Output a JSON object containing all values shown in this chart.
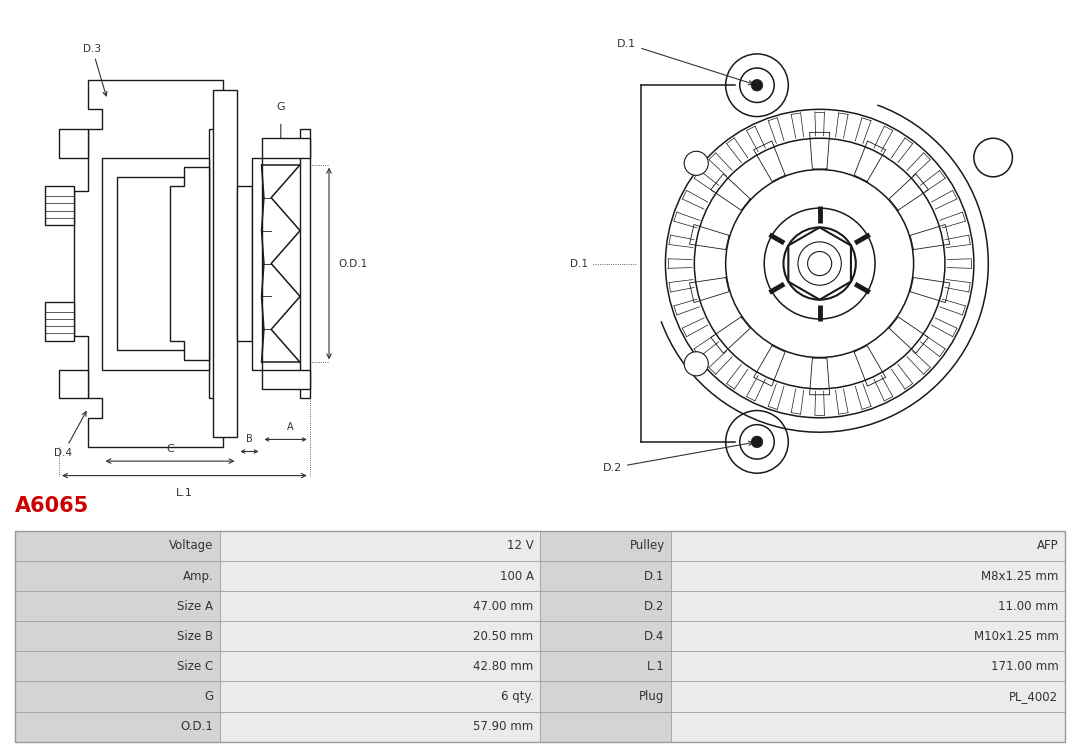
{
  "title": "A6065",
  "title_color": "#cc0000",
  "bg_color": "#ffffff",
  "ec": "#1a1a1a",
  "dim_color": "#333333",
  "table_rows": [
    [
      "Voltage",
      "12 V",
      "Pulley",
      "AFP"
    ],
    [
      "Amp.",
      "100 A",
      "D.1",
      "M8x1.25 mm"
    ],
    [
      "Size A",
      "47.00 mm",
      "D.2",
      "11.00 mm"
    ],
    [
      "Size B",
      "20.50 mm",
      "D.4",
      "M10x1.25 mm"
    ],
    [
      "Size C",
      "42.80 mm",
      "L.1",
      "171.00 mm"
    ],
    [
      "G",
      "6 qty.",
      "Plug",
      "PL_4002"
    ],
    [
      "O.D.1",
      "57.90 mm",
      "",
      ""
    ]
  ],
  "table_label_bg": "#d4d4d4",
  "table_value_bg": "#ebebeb",
  "table_border": "#999999",
  "table_text": "#333333"
}
